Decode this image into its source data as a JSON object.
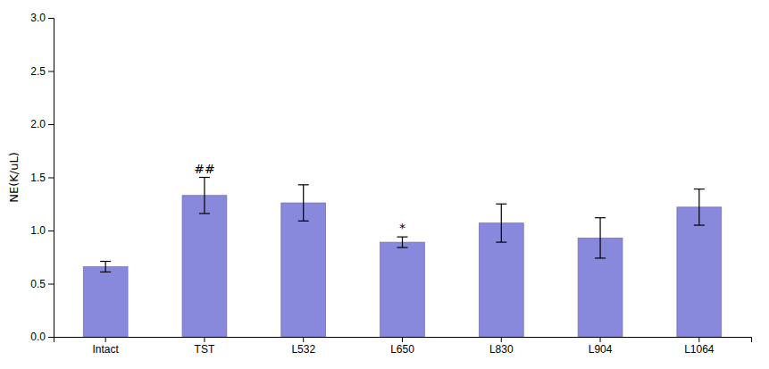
{
  "chart_data": {
    "type": "bar",
    "categories": [
      "Intact",
      "TST",
      "L532",
      "L650",
      "L830",
      "L904",
      "L1064"
    ],
    "values": [
      0.66,
      1.33,
      1.26,
      0.89,
      1.07,
      0.93,
      1.22
    ],
    "errors": [
      0.05,
      0.17,
      0.17,
      0.05,
      0.18,
      0.19,
      0.17
    ],
    "color": "#8888dd",
    "ylabel": "NE(K/uL)",
    "ylim": [
      0.0,
      3.0
    ],
    "yticks": [
      {
        "value": 0,
        "label": "0.0"
      },
      0.5,
      {
        "value": 1,
        "label": "1.0"
      },
      1.5,
      {
        "value": 2,
        "label": "2.0"
      },
      2.5,
      {
        "value": 3,
        "label": "3.0"
      }
    ],
    "annotations": [
      {
        "text": "##",
        "category": "TST"
      },
      {
        "text": "*",
        "category": "L650"
      }
    ],
    "grid": false
  }
}
